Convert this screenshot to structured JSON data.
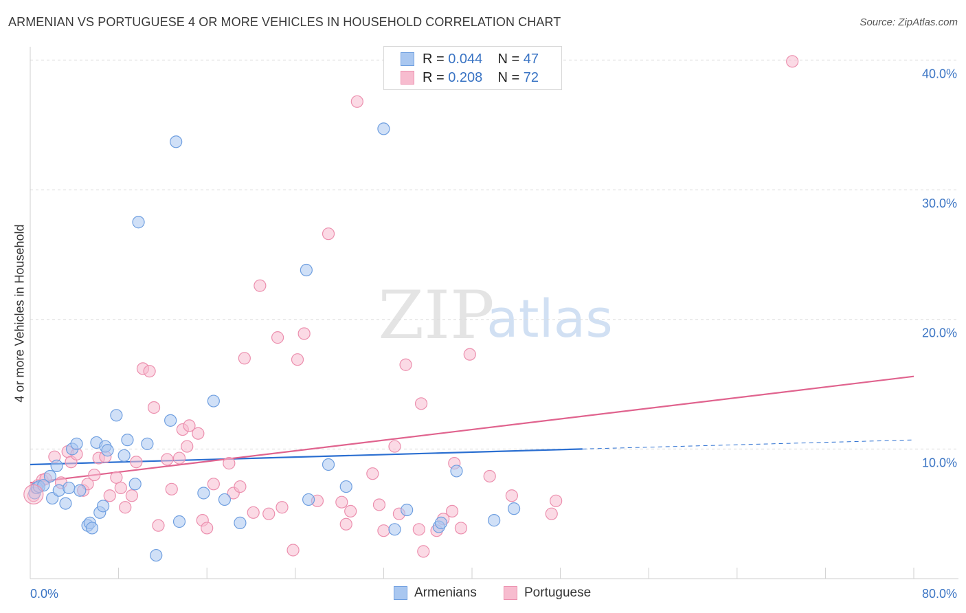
{
  "header": {
    "title": "ARMENIAN VS PORTUGUESE 4 OR MORE VEHICLES IN HOUSEHOLD CORRELATION CHART",
    "source": "Source: ZipAtlas.com"
  },
  "legend_top": {
    "rows": [
      {
        "r_label": "R =",
        "r_value": "0.044",
        "n_label": "N =",
        "n_value": "47"
      },
      {
        "r_label": "R =",
        "r_value": "0.208",
        "n_label": "N =",
        "n_value": "72"
      }
    ]
  },
  "legend_bottom": {
    "items": [
      {
        "label": "Armenians"
      },
      {
        "label": "Portuguese"
      }
    ]
  },
  "watermark": {
    "zip": "ZIP",
    "atlas": "atlas"
  },
  "colors": {
    "armenian_fill": "#a9c7f0",
    "armenian_stroke": "#6f9fe0",
    "armenian_line": "#2b6fd1",
    "portuguese_fill": "#f7bccf",
    "portuguese_stroke": "#ec8fae",
    "portuguese_line": "#e0638e",
    "axis_text": "#3a74c4",
    "grid": "#dcdcdc"
  },
  "chart_data": {
    "type": "scatter",
    "title": "ARMENIAN VS PORTUGUESE 4 OR MORE VEHICLES IN HOUSEHOLD CORRELATION CHART",
    "xlabel": "",
    "ylabel": "4 or more Vehicles in Household",
    "xlim": [
      0,
      80
    ],
    "ylim": [
      0,
      40.5
    ],
    "x_tick_labels": [
      "0.0%",
      "80.0%"
    ],
    "y_ticks": [
      10,
      20,
      30,
      40
    ],
    "y_tick_labels": [
      "10.0%",
      "20.0%",
      "30.0%",
      "40.0%"
    ],
    "grid": true,
    "legend": "top-center",
    "series": [
      {
        "name": "Armenians",
        "R": 0.044,
        "N": 47,
        "trend": {
          "x0": 0,
          "y0": 8.8,
          "x1": 50,
          "y1": 10.0,
          "dashed_to_x": 80,
          "dashed_to_y": 10.7
        },
        "points": [
          [
            0.4,
            6.6
          ],
          [
            0.6,
            7.0
          ],
          [
            0.8,
            7.1
          ],
          [
            1.2,
            7.2
          ],
          [
            1.8,
            7.9
          ],
          [
            2.0,
            6.2
          ],
          [
            2.4,
            8.7
          ],
          [
            2.6,
            6.8
          ],
          [
            3.2,
            5.8
          ],
          [
            3.5,
            7.0
          ],
          [
            3.8,
            10.0
          ],
          [
            4.2,
            10.4
          ],
          [
            4.5,
            6.8
          ],
          [
            5.2,
            4.1
          ],
          [
            5.4,
            4.3
          ],
          [
            5.6,
            3.9
          ],
          [
            6.0,
            10.5
          ],
          [
            6.3,
            5.1
          ],
          [
            6.6,
            5.6
          ],
          [
            6.8,
            10.2
          ],
          [
            7.0,
            9.9
          ],
          [
            7.8,
            12.6
          ],
          [
            8.5,
            9.5
          ],
          [
            8.8,
            10.7
          ],
          [
            9.5,
            7.3
          ],
          [
            9.8,
            27.5
          ],
          [
            10.6,
            10.4
          ],
          [
            11.4,
            1.8
          ],
          [
            12.7,
            12.2
          ],
          [
            13.2,
            33.7
          ],
          [
            13.5,
            4.4
          ],
          [
            15.7,
            6.6
          ],
          [
            16.6,
            13.7
          ],
          [
            17.6,
            6.1
          ],
          [
            19.0,
            4.3
          ],
          [
            25.0,
            23.8
          ],
          [
            25.2,
            6.1
          ],
          [
            27.0,
            8.8
          ],
          [
            28.6,
            7.1
          ],
          [
            32.0,
            34.7
          ],
          [
            33.0,
            3.8
          ],
          [
            34.1,
            5.3
          ],
          [
            37.0,
            4.0
          ],
          [
            37.2,
            4.3
          ],
          [
            38.6,
            8.3
          ],
          [
            42.0,
            4.5
          ],
          [
            43.8,
            5.4
          ]
        ]
      },
      {
        "name": "Portuguese",
        "R": 0.208,
        "N": 72,
        "trend": {
          "x0": 0,
          "y0": 7.4,
          "x1": 80,
          "y1": 15.6
        },
        "points": [
          [
            0.3,
            6.4
          ],
          [
            0.5,
            7.0
          ],
          [
            0.7,
            7.2
          ],
          [
            1.1,
            7.6
          ],
          [
            1.4,
            7.7
          ],
          [
            2.2,
            9.4
          ],
          [
            2.8,
            7.4
          ],
          [
            3.4,
            9.8
          ],
          [
            3.7,
            9.0
          ],
          [
            4.2,
            9.6
          ],
          [
            4.8,
            6.8
          ],
          [
            5.2,
            7.3
          ],
          [
            5.8,
            8.0
          ],
          [
            6.2,
            9.3
          ],
          [
            6.8,
            9.4
          ],
          [
            7.2,
            6.4
          ],
          [
            7.8,
            7.8
          ],
          [
            8.2,
            7.0
          ],
          [
            8.6,
            5.5
          ],
          [
            9.2,
            6.4
          ],
          [
            9.6,
            9.0
          ],
          [
            10.2,
            16.2
          ],
          [
            10.8,
            16.0
          ],
          [
            11.2,
            13.2
          ],
          [
            11.6,
            4.1
          ],
          [
            12.4,
            9.2
          ],
          [
            12.8,
            6.9
          ],
          [
            13.5,
            9.3
          ],
          [
            13.8,
            11.5
          ],
          [
            14.2,
            10.2
          ],
          [
            14.4,
            11.8
          ],
          [
            15.2,
            11.2
          ],
          [
            15.6,
            4.5
          ],
          [
            16.0,
            3.9
          ],
          [
            16.6,
            7.3
          ],
          [
            18.0,
            8.9
          ],
          [
            18.4,
            6.6
          ],
          [
            19.0,
            7.1
          ],
          [
            19.4,
            17.0
          ],
          [
            20.2,
            5.1
          ],
          [
            20.8,
            22.6
          ],
          [
            21.6,
            5.0
          ],
          [
            22.4,
            18.6
          ],
          [
            22.8,
            5.5
          ],
          [
            23.8,
            2.2
          ],
          [
            24.2,
            16.9
          ],
          [
            24.8,
            18.9
          ],
          [
            26.0,
            6.0
          ],
          [
            27.0,
            26.6
          ],
          [
            28.2,
            5.9
          ],
          [
            28.6,
            4.2
          ],
          [
            29.0,
            5.2
          ],
          [
            29.6,
            36.8
          ],
          [
            31.0,
            8.1
          ],
          [
            31.6,
            5.7
          ],
          [
            32.0,
            3.7
          ],
          [
            33.0,
            10.2
          ],
          [
            33.4,
            5.0
          ],
          [
            34.0,
            16.5
          ],
          [
            35.2,
            3.8
          ],
          [
            35.4,
            13.5
          ],
          [
            35.6,
            2.1
          ],
          [
            36.8,
            3.7
          ],
          [
            37.4,
            4.6
          ],
          [
            38.2,
            5.2
          ],
          [
            38.4,
            8.9
          ],
          [
            39.0,
            3.9
          ],
          [
            39.8,
            17.3
          ],
          [
            41.6,
            7.9
          ],
          [
            43.6,
            6.4
          ],
          [
            47.2,
            5.0
          ],
          [
            47.6,
            6.0
          ],
          [
            69.0,
            39.9
          ]
        ]
      }
    ]
  }
}
